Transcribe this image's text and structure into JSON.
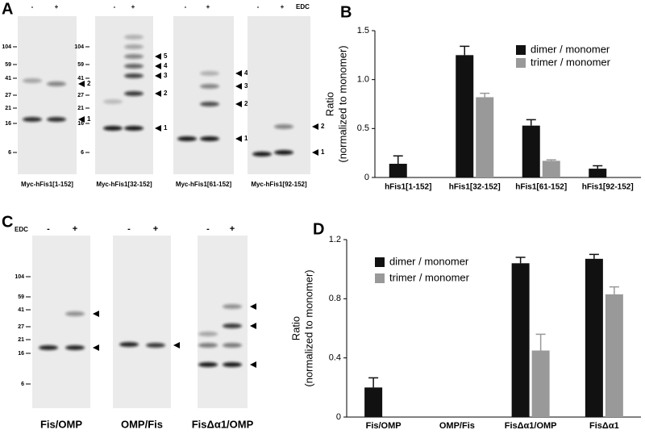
{
  "panel_labels": [
    "A",
    "B",
    "C",
    "D"
  ],
  "gel_panel_a": {
    "treatment_signs": [
      "-",
      "+"
    ],
    "reagent": "EDC",
    "mw_markers": [
      "104",
      "59",
      "41",
      "27",
      "21",
      "16",
      "6"
    ],
    "gels": [
      {
        "label": "Myc-hFis1[1-152]",
        "band_labels": [
          "2",
          "1"
        ]
      },
      {
        "label": "Myc-hFis1[32-152]",
        "band_labels": [
          "5",
          "4",
          "3",
          "2",
          "1"
        ]
      },
      {
        "label": "Myc-hFis1[61-152]",
        "band_labels": [
          "4",
          "3",
          "2",
          "1"
        ]
      },
      {
        "label": "Myc-hFis1[92-152]",
        "band_labels": [
          "2",
          "1"
        ]
      }
    ]
  },
  "gel_panel_c": {
    "treatment_signs": [
      "-",
      "+"
    ],
    "reagent": "EDC",
    "mw_markers": [
      "104",
      "59",
      "41",
      "27",
      "21",
      "16",
      "6"
    ],
    "gels": [
      {
        "label": "Fis/OMP"
      },
      {
        "label": "OMP/Fis"
      },
      {
        "label": "FisΔα1/OMP"
      }
    ]
  },
  "chart_data": [
    {
      "type": "bar",
      "y_label": [
        "Ratio",
        "(normalized to monomer)"
      ],
      "categories": [
        "hFis1[1-152]",
        "hFis1[32-152]",
        "hFis1[61-152]",
        "hFis1[92-152]"
      ],
      "series": [
        {
          "name": "dimer / monomer",
          "color": "#111111",
          "values": [
            0.14,
            1.25,
            0.53,
            0.09
          ],
          "errors": [
            0.08,
            0.09,
            0.06,
            0.03
          ]
        },
        {
          "name": "trimer / monomer",
          "color": "#999999",
          "values": [
            null,
            0.82,
            0.17,
            null
          ],
          "errors": [
            null,
            0.04,
            0.01,
            null
          ]
        }
      ],
      "ylim": [
        0,
        1.5
      ],
      "yticks": [
        0,
        0.5,
        {
          "value": 1,
          "label": "1.0"
        },
        1.5
      ],
      "grid": false,
      "legend": "top-right"
    },
    {
      "type": "bar",
      "y_label": [
        "Ratio",
        "(normalized to monomer)"
      ],
      "categories": [
        "Fis/OMP",
        "OMP/Fis",
        "FisΔα1/OMP",
        "FisΔα1"
      ],
      "series": [
        {
          "name": "dimer / monomer",
          "color": "#111111",
          "values": [
            0.2,
            null,
            1.04,
            1.07
          ],
          "errors": [
            0.065,
            null,
            0.04,
            0.03
          ]
        },
        {
          "name": "trimer / monomer",
          "color": "#999999",
          "values": [
            null,
            null,
            0.45,
            0.83
          ],
          "errors": [
            null,
            null,
            0.11,
            0.05
          ]
        }
      ],
      "ylim": [
        0,
        1.2
      ],
      "yticks": [
        0,
        0.4,
        0.8,
        1.2
      ],
      "grid": false,
      "legend": "top-left"
    }
  ]
}
